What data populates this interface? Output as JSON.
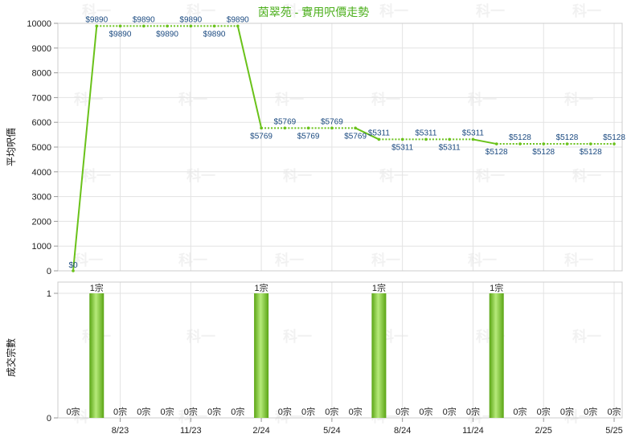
{
  "chart_data": [
    {
      "type": "line",
      "title": "茵翠苑 - 實用呎價走勢",
      "ylabel": "平均呎價",
      "ylim": [
        0,
        10000
      ],
      "yticks": [
        "0",
        "1000",
        "2000",
        "3000",
        "4000",
        "5000",
        "6000",
        "7000",
        "8000",
        "9000",
        "10000"
      ],
      "grid": true,
      "xlim": [
        0,
        23
      ],
      "x": [
        0,
        1,
        2,
        3,
        4,
        5,
        6,
        7,
        8,
        9,
        10,
        11,
        12,
        13,
        14,
        15,
        16,
        17,
        18,
        19,
        20,
        21,
        22,
        23
      ],
      "values": [
        0,
        9890,
        9890,
        9890,
        9890,
        9890,
        9890,
        9890,
        5769,
        5769,
        5769,
        5769,
        5769,
        5311,
        5311,
        5311,
        5311,
        5311,
        5128,
        5128,
        5128,
        5128,
        5128,
        5128
      ],
      "point_labels": [
        "$0",
        "$9890",
        "$9890",
        "$9890",
        "$9890",
        "$9890",
        "$9890",
        "$9890",
        "$5769",
        "$5769",
        "$5769",
        "$5769",
        "$5769",
        "$5311",
        "$5311",
        "$5311",
        "$5311",
        "$5311",
        "$5128",
        "$5128",
        "$5128",
        "$5128",
        "$5128",
        "$5128"
      ],
      "line_color": "#6ac21a"
    },
    {
      "type": "bar",
      "ylabel": "成交宗數",
      "ylim": [
        0,
        1
      ],
      "yticks": [
        "0",
        "1"
      ],
      "grid": true,
      "xlim": [
        0,
        23
      ],
      "x": [
        0,
        1,
        2,
        3,
        4,
        5,
        6,
        7,
        8,
        9,
        10,
        11,
        12,
        13,
        14,
        15,
        16,
        17,
        18,
        19,
        20,
        21,
        22,
        23
      ],
      "values": [
        0,
        1,
        0,
        0,
        0,
        0,
        0,
        0,
        1,
        0,
        0,
        0,
        0,
        1,
        0,
        0,
        0,
        0,
        1,
        0,
        0,
        0,
        0,
        0
      ],
      "bar_labels": [
        "0宗",
        "1宗",
        "0宗",
        "0宗",
        "0宗",
        "0宗",
        "0宗",
        "0宗",
        "1宗",
        "0宗",
        "0宗",
        "0宗",
        "0宗",
        "1宗",
        "0宗",
        "0宗",
        "0宗",
        "0宗",
        "1宗",
        "0宗",
        "0宗",
        "0宗",
        "0宗",
        "0宗"
      ],
      "xticks": [
        {
          "x": 2,
          "label": "8/23"
        },
        {
          "x": 5,
          "label": "11/23"
        },
        {
          "x": 8,
          "label": "2/24"
        },
        {
          "x": 11,
          "label": "5/24"
        },
        {
          "x": 14,
          "label": "8/24"
        },
        {
          "x": 17,
          "label": "11/24"
        },
        {
          "x": 20,
          "label": "2/25"
        },
        {
          "x": 23,
          "label": "5/25"
        }
      ],
      "bar_color": "#6ac21a"
    }
  ],
  "watermark": "科一"
}
